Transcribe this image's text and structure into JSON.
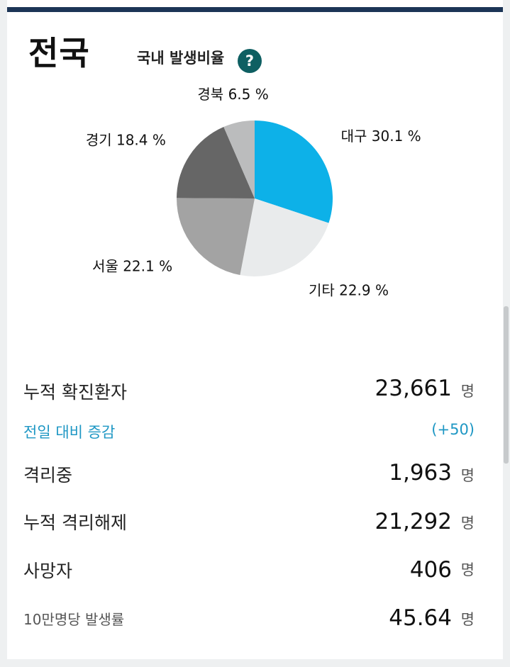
{
  "header": {
    "region": "전국",
    "ratio_label": "국내 발생비율",
    "help_symbol": "?"
  },
  "chart_data": {
    "type": "pie",
    "slices": [
      {
        "name": "대구",
        "value": 30.1,
        "label": "대구 30.1 %",
        "color": "#0db1e8"
      },
      {
        "name": "기타",
        "value": 22.9,
        "label": "기타 22.9 %",
        "color": "#e9ebec"
      },
      {
        "name": "서울",
        "value": 22.1,
        "label": "서울 22.1 %",
        "color": "#a3a3a3"
      },
      {
        "name": "경기",
        "value": 18.4,
        "label": "경기 18.4 %",
        "color": "#666666"
      },
      {
        "name": "경북",
        "value": 6.5,
        "label": "경북 6.5 %",
        "color": "#bbbcbd"
      }
    ]
  },
  "stats": {
    "confirmed": {
      "label": "누적 확진환자",
      "value": "23,661",
      "unit": "명"
    },
    "delta": {
      "label": "전일 대비 증감",
      "value": "(+50)"
    },
    "isolated": {
      "label": "격리중",
      "value": "1,963",
      "unit": "명"
    },
    "released": {
      "label": "누적 격리해제",
      "value": "21,292",
      "unit": "명"
    },
    "deaths": {
      "label": "사망자",
      "value": "406",
      "unit": "명"
    },
    "per100k": {
      "label": "10만명당 발생률",
      "value": "45.64",
      "unit": "명"
    }
  }
}
